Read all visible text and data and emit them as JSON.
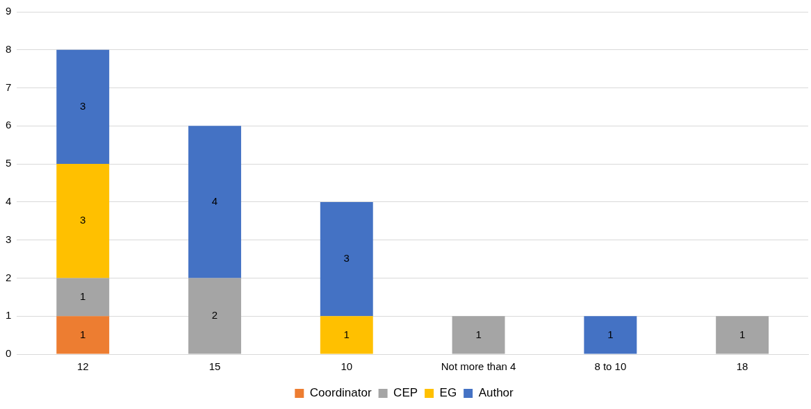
{
  "chart_data": {
    "type": "bar",
    "stacked": true,
    "categories": [
      "12",
      "15",
      "10",
      "Not more than 4",
      "8 to 10",
      "18"
    ],
    "series": [
      {
        "name": "Coordinator",
        "color": "#ed7d31",
        "values": [
          1,
          null,
          null,
          null,
          null,
          null
        ]
      },
      {
        "name": "CEP",
        "color": "#a5a5a5",
        "values": [
          1,
          2,
          null,
          1,
          null,
          1
        ]
      },
      {
        "name": "EG",
        "color": "#ffc000",
        "values": [
          3,
          null,
          1,
          null,
          null,
          null
        ]
      },
      {
        "name": "Author",
        "color": "#4472c4",
        "values": [
          3,
          4,
          3,
          null,
          1,
          null
        ]
      }
    ],
    "ylim": [
      0,
      9
    ],
    "yticks": [
      0,
      1,
      2,
      3,
      4,
      5,
      6,
      7,
      8,
      9
    ],
    "grid": "y",
    "legend": "bottom",
    "data_labels": true
  }
}
